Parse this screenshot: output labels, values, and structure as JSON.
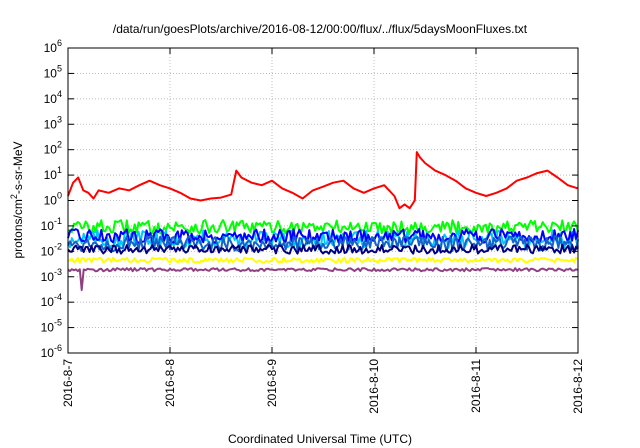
{
  "chart_data": {
    "type": "line",
    "title": "/data/run/goesPlots/archive/2016-08-12/00:00/flux/../flux/5daysMoonFluxes.txt",
    "xlabel": "Coordinated Universal Time (UTC)",
    "ylabel_parts": {
      "pre": "protons/cm",
      "sup": "2",
      "post": "-s-sr-MeV"
    },
    "y_scale": "log",
    "ylim": [
      1e-06,
      1000000.0
    ],
    "x_range": [
      "2016-08-07",
      "2016-08-12"
    ],
    "grid": true,
    "y_ticks": [
      {
        "exp": "-6",
        "value": 1e-06
      },
      {
        "exp": "-5",
        "value": 1e-05
      },
      {
        "exp": "-4",
        "value": 0.0001
      },
      {
        "exp": "-3",
        "value": 0.001
      },
      {
        "exp": "-2",
        "value": 0.01
      },
      {
        "exp": "-1",
        "value": 0.1
      },
      {
        "exp": "0",
        "value": 1
      },
      {
        "exp": "1",
        "value": 10
      },
      {
        "exp": "2",
        "value": 100
      },
      {
        "exp": "3",
        "value": 1000
      },
      {
        "exp": "4",
        "value": 10000
      },
      {
        "exp": "5",
        "value": 100000
      },
      {
        "exp": "6",
        "value": 1000000
      }
    ],
    "x_ticks": [
      {
        "label": "2016-8-7",
        "day": 0
      },
      {
        "label": "2016-8-8",
        "day": 1
      },
      {
        "label": "2016-8-9",
        "day": 2
      },
      {
        "label": "2016-8-10",
        "day": 3
      },
      {
        "label": "2016-8-11",
        "day": 4
      },
      {
        "label": "2016-8-12",
        "day": 5
      }
    ],
    "series": [
      {
        "color": "#ff0000",
        "x": [
          0,
          0.05,
          0.1,
          0.15,
          0.2,
          0.25,
          0.3,
          0.4,
          0.5,
          0.6,
          0.7,
          0.8,
          0.9,
          1.0,
          1.1,
          1.2,
          1.3,
          1.4,
          1.5,
          1.6,
          1.65,
          1.7,
          1.8,
          1.9,
          2.0,
          2.1,
          2.2,
          2.3,
          2.4,
          2.5,
          2.6,
          2.7,
          2.8,
          2.9,
          3.0,
          3.1,
          3.2,
          3.25,
          3.3,
          3.35,
          3.4,
          3.42,
          3.45,
          3.5,
          3.6,
          3.7,
          3.8,
          3.9,
          4.0,
          4.1,
          4.2,
          4.3,
          4.4,
          4.5,
          4.6,
          4.7,
          4.8,
          4.9,
          5.0
        ],
        "y": [
          1.5,
          5.0,
          8.0,
          2.5,
          2.0,
          1.2,
          2.5,
          2.0,
          3.0,
          2.5,
          4.0,
          6.0,
          4.0,
          3.0,
          2.0,
          1.2,
          1.0,
          1.2,
          1.3,
          1.7,
          15.0,
          8.0,
          5.0,
          4.0,
          6.0,
          3.0,
          2.0,
          1.2,
          2.5,
          3.5,
          5.0,
          6.0,
          3.0,
          2.0,
          3.0,
          4.0,
          1.5,
          0.5,
          0.7,
          0.5,
          1.0,
          80.0,
          50.0,
          30.0,
          15.0,
          10.0,
          6.0,
          3.0,
          2.0,
          1.5,
          2.0,
          3.0,
          6.0,
          8.0,
          12.0,
          15.0,
          8.0,
          4.0,
          3.0
        ]
      },
      {
        "color": "#00ff00",
        "base": 0.09,
        "amp": 0.55
      },
      {
        "color": "#00c8ff",
        "base": 0.03,
        "amp": 0.7
      },
      {
        "color": "#0000ff",
        "base": 0.04,
        "amp": 0.55
      },
      {
        "color": "#1464c8",
        "base": 0.02,
        "amp": 0.6
      },
      {
        "color": "#ffff00",
        "base": 0.0045,
        "amp": 0.2
      },
      {
        "color": "#000080",
        "base": 0.012,
        "amp": 0.35
      },
      {
        "color": "#904080",
        "base": 0.0019,
        "amp": 0.12,
        "dip": {
          "x": 0.13,
          "y": 0.0003
        }
      }
    ]
  }
}
